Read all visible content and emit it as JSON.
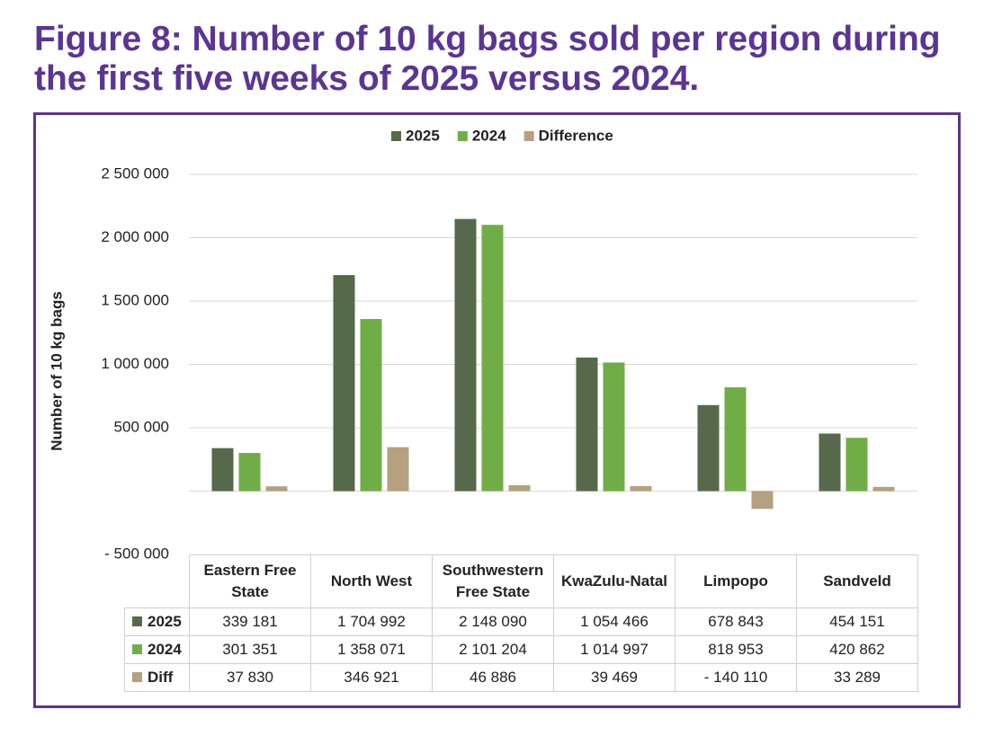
{
  "chart_data": {
    "type": "bar",
    "title": "Figure 8: Number of 10 kg bags sold per region during the first five weeks of 2025 versus 2024.",
    "y_label": "Number of 10 kg bags",
    "categories": [
      "Eastern Free State",
      "North West",
      "Southwestern Free State",
      "KwaZulu-Natal",
      "Limpopo",
      "Sandveld"
    ],
    "series": [
      {
        "name": "2025",
        "table_label": "2025",
        "color": "#56694a",
        "values": [
          339181,
          1704992,
          2148090,
          1054466,
          678843,
          454151
        ],
        "value_labels": [
          "339 181",
          "1 704 992",
          "2 148 090",
          "1 054 466",
          "678 843",
          "454 151"
        ]
      },
      {
        "name": "2024",
        "table_label": "2024",
        "color": "#70ad47",
        "values": [
          301351,
          1358071,
          2101204,
          1014997,
          818953,
          420862
        ],
        "value_labels": [
          "301 351",
          "1 358 071",
          "2 101 204",
          "1 014 997",
          "818 953",
          "420 862"
        ]
      },
      {
        "name": "Difference",
        "table_label": "Diff",
        "color": "#b5a07f",
        "values": [
          37830,
          346921,
          46886,
          39469,
          -140110,
          33289
        ],
        "value_labels": [
          "37 830",
          "346 921",
          "46 886",
          "39 469",
          "- 140 110",
          "33 289"
        ]
      }
    ],
    "ylim": [
      -500000,
      2500000
    ],
    "yticks": [
      {
        "value": -500000,
        "label": "- 500 000"
      },
      {
        "value": 500000,
        "label": "500 000"
      },
      {
        "value": 1000000,
        "label": "1 000 000"
      },
      {
        "value": 1500000,
        "label": "1 500 000"
      },
      {
        "value": 2000000,
        "label": "2 000 000"
      },
      {
        "value": 2500000,
        "label": "2 500 000"
      }
    ],
    "grid": true,
    "legend": "top"
  }
}
